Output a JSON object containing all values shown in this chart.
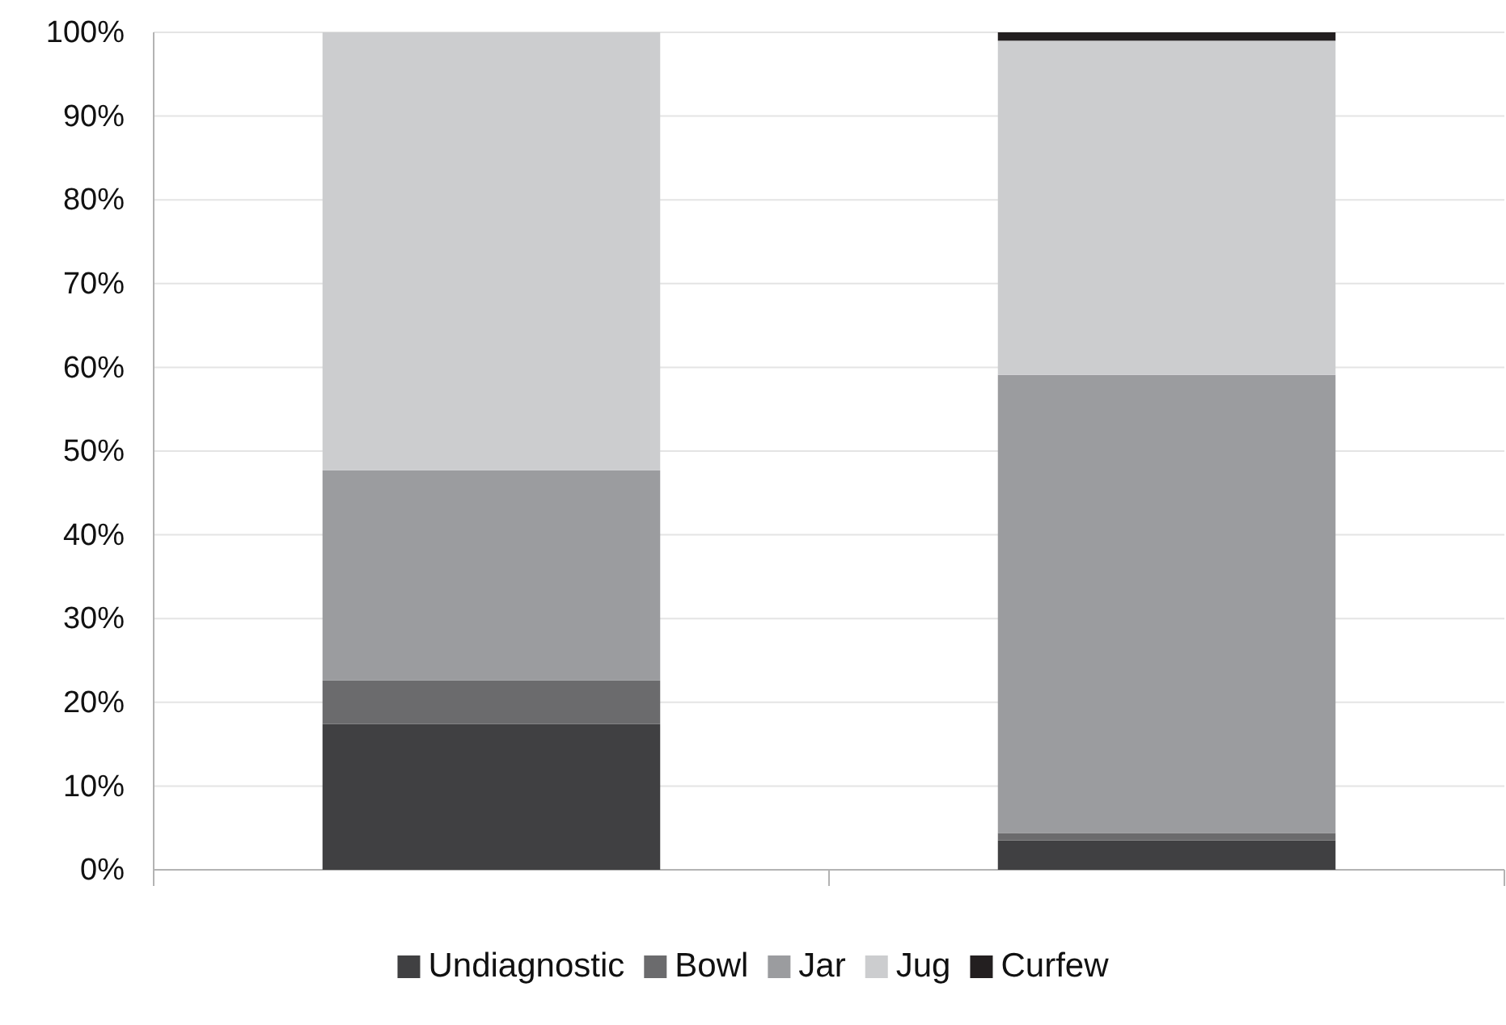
{
  "chart_data": {
    "type": "bar",
    "stacked": true,
    "categories": [
      null,
      null
    ],
    "series": [
      {
        "name": "Undiagnostic",
        "color": "#404042",
        "values": [
          17.4,
          3.5
        ]
      },
      {
        "name": "Bowl",
        "color": "#6b6b6d",
        "values": [
          5.2,
          0.9
        ]
      },
      {
        "name": "Jar",
        "color": "#9b9c9f",
        "values": [
          25.1,
          54.7
        ]
      },
      {
        "name": "Jug",
        "color": "#cccdcf",
        "values": [
          52.3,
          39.9
        ]
      },
      {
        "name": "Curfew",
        "color": "#231f20",
        "values": [
          0,
          1.0
        ]
      }
    ],
    "ylim": [
      0,
      100
    ],
    "yticks": [
      {
        "value": 0,
        "label": "0%"
      },
      {
        "value": 10,
        "label": "10%"
      },
      {
        "value": 20,
        "label": "20%"
      },
      {
        "value": 30,
        "label": "30%"
      },
      {
        "value": 40,
        "label": "40%"
      },
      {
        "value": 50,
        "label": "50%"
      },
      {
        "value": 60,
        "label": "60%"
      },
      {
        "value": 70,
        "label": "70%"
      },
      {
        "value": 80,
        "label": "80%"
      },
      {
        "value": 90,
        "label": "90%"
      },
      {
        "value": 100,
        "label": "100%"
      }
    ],
    "grid": "y",
    "legend": "bottom"
  }
}
